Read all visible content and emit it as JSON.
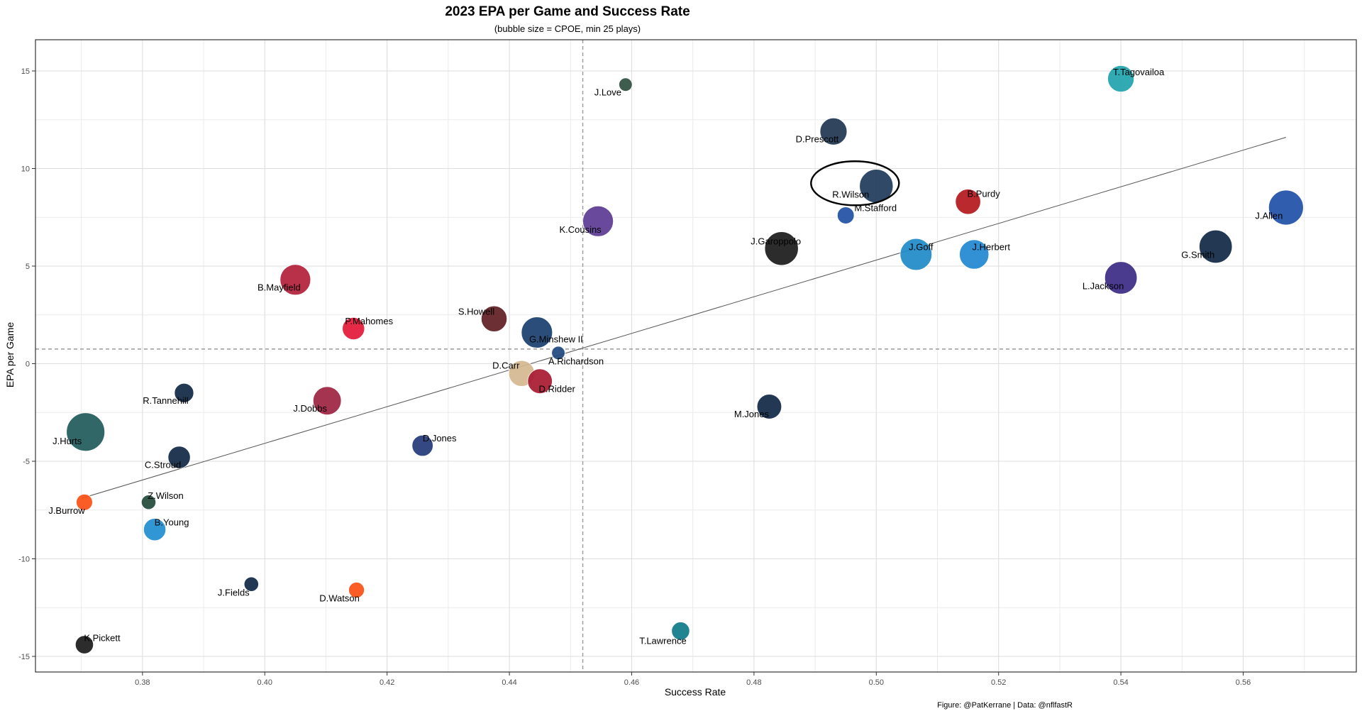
{
  "chart_data": {
    "type": "scatter",
    "title": "2023 EPA per Game and Success Rate",
    "subtitle": "(bubble size = CPOE, min 25 plays)",
    "xlabel": "Success Rate",
    "ylabel": "EPA per Game",
    "caption": "Figure: @PatKerrane | Data: @nflfastR",
    "xlim": [
      0.3625,
      0.5785
    ],
    "ylim": [
      -15.8,
      16.6
    ],
    "x_ticks": [
      "0.38",
      "0.40",
      "0.42",
      "0.44",
      "0.46",
      "0.48",
      "0.50",
      "0.52",
      "0.54",
      "0.56"
    ],
    "y_ticks": [
      "-15",
      "-10",
      "-5",
      "0",
      "5",
      "10",
      "15"
    ],
    "grid": true,
    "reference_lines": {
      "x_mean": 0.452,
      "y_mean": 0.75
    },
    "trend_line": {
      "x": [
        0.37,
        0.567
      ],
      "y": [
        -6.9,
        11.6
      ]
    },
    "highlight": {
      "label": "R.Wilson",
      "shape": "ellipse"
    },
    "points": [
      {
        "label": "T.Tagovailoa",
        "x": 0.54,
        "y": 14.6,
        "size": 3.0,
        "color": "#21a3ad"
      },
      {
        "label": "J.Love",
        "x": 0.459,
        "y": 14.3,
        "size": 0.8,
        "color": "#2f4f3f"
      },
      {
        "label": "D.Prescott",
        "x": 0.493,
        "y": 11.9,
        "size": 3.1,
        "color": "#1f3550"
      },
      {
        "label": "R.Wilson",
        "x": 0.5,
        "y": 9.1,
        "size": 4.2,
        "color": "#1e3a5a"
      },
      {
        "label": "B.Purdy",
        "x": 0.515,
        "y": 8.3,
        "size": 2.8,
        "color": "#b3171b"
      },
      {
        "label": "M.Stafford",
        "x": 0.495,
        "y": 7.6,
        "size": 1.4,
        "color": "#1f4fa3"
      },
      {
        "label": "K.Cousins",
        "x": 0.4545,
        "y": 7.3,
        "size": 3.7,
        "color": "#5b3a94"
      },
      {
        "label": "J.Allen",
        "x": 0.567,
        "y": 8.0,
        "size": 4.4,
        "color": "#1f4fa8"
      },
      {
        "label": "J.Garoppolo",
        "x": 0.4845,
        "y": 5.9,
        "size": 4.2,
        "color": "#1a1a1a"
      },
      {
        "label": "G.Smith",
        "x": 0.5555,
        "y": 6.0,
        "size": 4.1,
        "color": "#0f2744"
      },
      {
        "label": "J.Goff",
        "x": 0.5065,
        "y": 5.6,
        "size": 3.9,
        "color": "#1f8ac8"
      },
      {
        "label": "J.Herbert",
        "x": 0.516,
        "y": 5.6,
        "size": 3.5,
        "color": "#1f88d0"
      },
      {
        "label": "L.Jackson",
        "x": 0.54,
        "y": 4.4,
        "size": 4.0,
        "color": "#3c2a86"
      },
      {
        "label": "B.Mayfield",
        "x": 0.405,
        "y": 4.3,
        "size": 3.7,
        "color": "#b3203a"
      },
      {
        "label": "S.Howell",
        "x": 0.4375,
        "y": 2.3,
        "size": 2.9,
        "color": "#5e1d23"
      },
      {
        "label": "G.Minshew II",
        "x": 0.4445,
        "y": 1.6,
        "size": 3.8,
        "color": "#183f6e"
      },
      {
        "label": "P.Mahomes",
        "x": 0.4145,
        "y": 1.8,
        "size": 2.3,
        "color": "#e31837"
      },
      {
        "label": "A.Richardson",
        "x": 0.448,
        "y": 0.55,
        "size": 0.8,
        "color": "#1f4880"
      },
      {
        "label": "D.Carr",
        "x": 0.442,
        "y": -0.5,
        "size": 2.9,
        "color": "#d4b98f"
      },
      {
        "label": "D.Ridder",
        "x": 0.445,
        "y": -0.9,
        "size": 2.7,
        "color": "#a71930"
      },
      {
        "label": "R.Tannehill",
        "x": 0.3868,
        "y": -1.5,
        "size": 1.8,
        "color": "#0f2744"
      },
      {
        "label": "J.Dobbs",
        "x": 0.4102,
        "y": -1.9,
        "size": 3.3,
        "color": "#9c2340"
      },
      {
        "label": "M.Jones",
        "x": 0.4825,
        "y": -2.2,
        "size": 2.7,
        "color": "#0f2744"
      },
      {
        "label": "J.Hurts",
        "x": 0.3707,
        "y": -3.5,
        "size": 5.0,
        "color": "#1f5a5a"
      },
      {
        "label": "D.Jones",
        "x": 0.4258,
        "y": -4.2,
        "size": 2.1,
        "color": "#233a7a"
      },
      {
        "label": "C.Stroud",
        "x": 0.386,
        "y": -4.8,
        "size": 2.3,
        "color": "#0f2744"
      },
      {
        "label": "J.Burrow",
        "x": 0.3705,
        "y": -7.1,
        "size": 1.3,
        "color": "#fb4f14"
      },
      {
        "label": "Z.Wilson",
        "x": 0.381,
        "y": -7.1,
        "size": 1.0,
        "color": "#1f4a3a"
      },
      {
        "label": "B.Young",
        "x": 0.382,
        "y": -8.5,
        "size": 2.3,
        "color": "#1f8ed0"
      },
      {
        "label": "J.Fields",
        "x": 0.3978,
        "y": -11.3,
        "size": 1.0,
        "color": "#0f2744"
      },
      {
        "label": "D.Watson",
        "x": 0.415,
        "y": -11.6,
        "size": 1.2,
        "color": "#fb4f14"
      },
      {
        "label": "T.Lawrence",
        "x": 0.468,
        "y": -13.7,
        "size": 1.6,
        "color": "#0e7a87"
      },
      {
        "label": "K.Pickett",
        "x": 0.3705,
        "y": -14.4,
        "size": 1.6,
        "color": "#1a1a1a"
      }
    ]
  }
}
